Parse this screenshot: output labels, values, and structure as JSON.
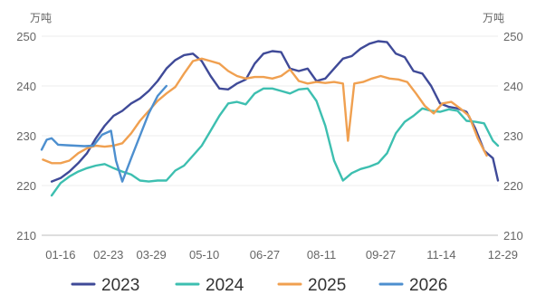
{
  "chart_data": {
    "type": "line",
    "title": "",
    "y_unit_left": "万吨",
    "y_unit_right": "万吨",
    "xlabel": "",
    "ylabel": "",
    "ylim": [
      210,
      250
    ],
    "yticks": [
      210,
      220,
      230,
      240,
      250
    ],
    "x_range": [
      "01-01",
      "12-29"
    ],
    "x_tick_labels": [
      "01-16",
      "02-23",
      "03-29",
      "05-10",
      "06-27",
      "08-11",
      "09-27",
      "11-14",
      "12-29"
    ],
    "grid": "horizontal",
    "legend": "bottom",
    "series": [
      {
        "name": "2023",
        "color": "#3f4a98",
        "points": [
          [
            "01-09",
            220.8
          ],
          [
            "01-16",
            221.5
          ],
          [
            "01-23",
            222.8
          ],
          [
            "01-30",
            224.5
          ],
          [
            "02-06",
            226.5
          ],
          [
            "02-13",
            229.5
          ],
          [
            "02-20",
            232.0
          ],
          [
            "02-27",
            234.0
          ],
          [
            "03-06",
            235.0
          ],
          [
            "03-13",
            236.5
          ],
          [
            "03-20",
            237.5
          ],
          [
            "03-27",
            239.0
          ],
          [
            "04-03",
            241.0
          ],
          [
            "04-10",
            243.5
          ],
          [
            "04-17",
            245.2
          ],
          [
            "04-24",
            246.2
          ],
          [
            "05-01",
            246.5
          ],
          [
            "05-08",
            245.0
          ],
          [
            "05-15",
            242.0
          ],
          [
            "05-22",
            239.5
          ],
          [
            "05-29",
            239.3
          ],
          [
            "06-05",
            240.5
          ],
          [
            "06-12",
            241.3
          ],
          [
            "06-19",
            244.5
          ],
          [
            "06-26",
            246.5
          ],
          [
            "07-03",
            247.0
          ],
          [
            "07-10",
            246.8
          ],
          [
            "07-17",
            243.5
          ],
          [
            "07-24",
            243.0
          ],
          [
            "07-31",
            243.5
          ],
          [
            "08-07",
            241.0
          ],
          [
            "08-14",
            241.5
          ],
          [
            "08-21",
            243.5
          ],
          [
            "08-28",
            245.5
          ],
          [
            "09-04",
            246.0
          ],
          [
            "09-11",
            247.5
          ],
          [
            "09-18",
            248.5
          ],
          [
            "09-25",
            249.0
          ],
          [
            "10-02",
            248.8
          ],
          [
            "10-09",
            246.5
          ],
          [
            "10-16",
            245.8
          ],
          [
            "10-23",
            243.0
          ],
          [
            "10-30",
            242.5
          ],
          [
            "11-06",
            240.0
          ],
          [
            "11-13",
            236.5
          ],
          [
            "11-20",
            235.8
          ],
          [
            "11-27",
            235.5
          ],
          [
            "12-04",
            234.8
          ],
          [
            "12-11",
            231.5
          ],
          [
            "12-18",
            227.0
          ],
          [
            "12-25",
            225.5
          ],
          [
            "12-29",
            221.0
          ]
        ]
      },
      {
        "name": "2024",
        "color": "#3dbfb0",
        "points": [
          [
            "01-09",
            218.0
          ],
          [
            "01-16",
            220.5
          ],
          [
            "01-23",
            221.8
          ],
          [
            "01-30",
            222.8
          ],
          [
            "02-06",
            223.5
          ],
          [
            "02-13",
            224.0
          ],
          [
            "02-20",
            224.3
          ],
          [
            "02-27",
            223.5
          ],
          [
            "03-06",
            222.8
          ],
          [
            "03-13",
            222.2
          ],
          [
            "03-20",
            221.0
          ],
          [
            "03-27",
            220.8
          ],
          [
            "04-03",
            221.0
          ],
          [
            "04-10",
            221.0
          ],
          [
            "04-17",
            223.0
          ],
          [
            "04-24",
            224.0
          ],
          [
            "05-01",
            226.0
          ],
          [
            "05-08",
            228.0
          ],
          [
            "05-15",
            231.0
          ],
          [
            "05-22",
            234.0
          ],
          [
            "05-29",
            236.5
          ],
          [
            "06-05",
            236.8
          ],
          [
            "06-12",
            236.3
          ],
          [
            "06-19",
            238.5
          ],
          [
            "06-26",
            239.5
          ],
          [
            "07-03",
            239.5
          ],
          [
            "07-10",
            239.0
          ],
          [
            "07-17",
            238.5
          ],
          [
            "07-24",
            239.3
          ],
          [
            "07-31",
            239.5
          ],
          [
            "08-07",
            237.0
          ],
          [
            "08-14",
            232.0
          ],
          [
            "08-21",
            225.0
          ],
          [
            "08-28",
            221.0
          ],
          [
            "09-04",
            222.5
          ],
          [
            "09-11",
            223.3
          ],
          [
            "09-18",
            223.8
          ],
          [
            "09-25",
            224.5
          ],
          [
            "10-02",
            226.5
          ],
          [
            "10-09",
            230.5
          ],
          [
            "10-16",
            232.8
          ],
          [
            "10-23",
            234.0
          ],
          [
            "10-30",
            235.5
          ],
          [
            "11-06",
            235.0
          ],
          [
            "11-13",
            234.8
          ],
          [
            "11-20",
            235.3
          ],
          [
            "11-27",
            235.0
          ],
          [
            "12-04",
            233.0
          ],
          [
            "12-11",
            232.8
          ],
          [
            "12-18",
            232.5
          ],
          [
            "12-25",
            229.0
          ],
          [
            "12-29",
            228.0
          ]
        ]
      },
      {
        "name": "2025",
        "color": "#f0a050",
        "points": [
          [
            "01-02",
            225.2
          ],
          [
            "01-09",
            224.5
          ],
          [
            "01-16",
            224.5
          ],
          [
            "01-23",
            225.0
          ],
          [
            "01-30",
            226.5
          ],
          [
            "02-06",
            227.5
          ],
          [
            "02-13",
            228.0
          ],
          [
            "02-20",
            227.8
          ],
          [
            "02-27",
            228.0
          ],
          [
            "03-06",
            228.5
          ],
          [
            "03-13",
            230.5
          ],
          [
            "03-20",
            233.0
          ],
          [
            "03-27",
            235.0
          ],
          [
            "04-03",
            237.0
          ],
          [
            "04-10",
            238.5
          ],
          [
            "04-17",
            239.8
          ],
          [
            "04-24",
            242.5
          ],
          [
            "05-01",
            245.0
          ],
          [
            "05-08",
            245.5
          ],
          [
            "05-15",
            245.0
          ],
          [
            "05-22",
            244.5
          ],
          [
            "05-29",
            243.0
          ],
          [
            "06-05",
            242.0
          ],
          [
            "06-12",
            241.5
          ],
          [
            "06-19",
            241.8
          ],
          [
            "06-26",
            241.8
          ],
          [
            "07-03",
            241.5
          ],
          [
            "07-10",
            242.0
          ],
          [
            "07-17",
            243.3
          ],
          [
            "07-24",
            241.0
          ],
          [
            "07-31",
            240.5
          ],
          [
            "08-07",
            240.8
          ],
          [
            "08-14",
            240.6
          ],
          [
            "08-21",
            240.8
          ],
          [
            "08-28",
            240.5
          ],
          [
            "09-01",
            229.0
          ],
          [
            "09-06",
            240.5
          ],
          [
            "09-13",
            240.8
          ],
          [
            "09-20",
            241.5
          ],
          [
            "09-27",
            242.0
          ],
          [
            "10-04",
            241.5
          ],
          [
            "10-11",
            241.3
          ],
          [
            "10-18",
            240.8
          ],
          [
            "10-25",
            238.5
          ],
          [
            "11-01",
            236.0
          ],
          [
            "11-08",
            234.5
          ],
          [
            "11-15",
            236.5
          ],
          [
            "11-22",
            236.8
          ],
          [
            "11-29",
            235.5
          ],
          [
            "12-06",
            234.0
          ],
          [
            "12-13",
            229.5
          ],
          [
            "12-20",
            226.0
          ]
        ]
      },
      {
        "name": "2026",
        "color": "#4d8fcf",
        "points": [
          [
            "01-01",
            227.2
          ],
          [
            "01-05",
            229.2
          ],
          [
            "01-09",
            229.5
          ],
          [
            "01-14",
            228.2
          ],
          [
            "01-21",
            228.1
          ],
          [
            "01-28",
            228.0
          ],
          [
            "02-04",
            227.9
          ],
          [
            "02-11",
            228.0
          ],
          [
            "02-18",
            230.2
          ],
          [
            "02-25",
            231.0
          ],
          [
            "03-01",
            225.0
          ],
          [
            "03-06",
            220.8
          ],
          [
            "03-13",
            225.5
          ],
          [
            "03-20",
            230.0
          ],
          [
            "03-27",
            234.5
          ],
          [
            "04-03",
            238.0
          ],
          [
            "04-10",
            240.0
          ]
        ]
      }
    ]
  }
}
